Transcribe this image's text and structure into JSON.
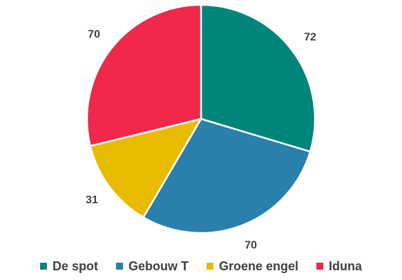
{
  "chart_data": {
    "type": "pie",
    "categories": [
      "De spot",
      "Gebouw T",
      "Groene engel",
      "Iduna"
    ],
    "values": [
      72,
      70,
      31,
      70
    ],
    "colors": [
      "#00857a",
      "#2a7fab",
      "#e8bb00",
      "#f0284a"
    ],
    "legend": "bottom"
  }
}
